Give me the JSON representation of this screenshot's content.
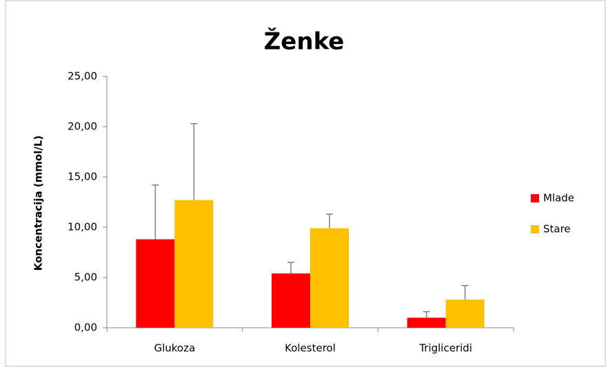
{
  "chart_data": {
    "type": "bar",
    "title": "Ženke",
    "y_label": "Koncentracija (mmol/L)",
    "categories": [
      "Glukoza",
      "Kolesterol",
      "Trigliceridi"
    ],
    "series": [
      {
        "name": "Mlade",
        "color": "#ff0000",
        "values": [
          8.8,
          5.4,
          1.0
        ],
        "errors": [
          5.4,
          1.1,
          0.6
        ]
      },
      {
        "name": "Stare",
        "color": "#ffc000",
        "values": [
          12.7,
          9.9,
          2.8
        ],
        "errors": [
          7.6,
          1.4,
          1.4
        ]
      }
    ],
    "ylim": [
      0,
      25
    ],
    "yticks": [
      {
        "value": 0,
        "label": "0,00"
      },
      {
        "value": 5,
        "label": "5,00"
      },
      {
        "value": 10,
        "label": "10,00"
      },
      {
        "value": 15,
        "label": "15,00"
      },
      {
        "value": 20,
        "label": "20,00"
      },
      {
        "value": 25,
        "label": "25,00"
      }
    ],
    "legend": "right"
  }
}
